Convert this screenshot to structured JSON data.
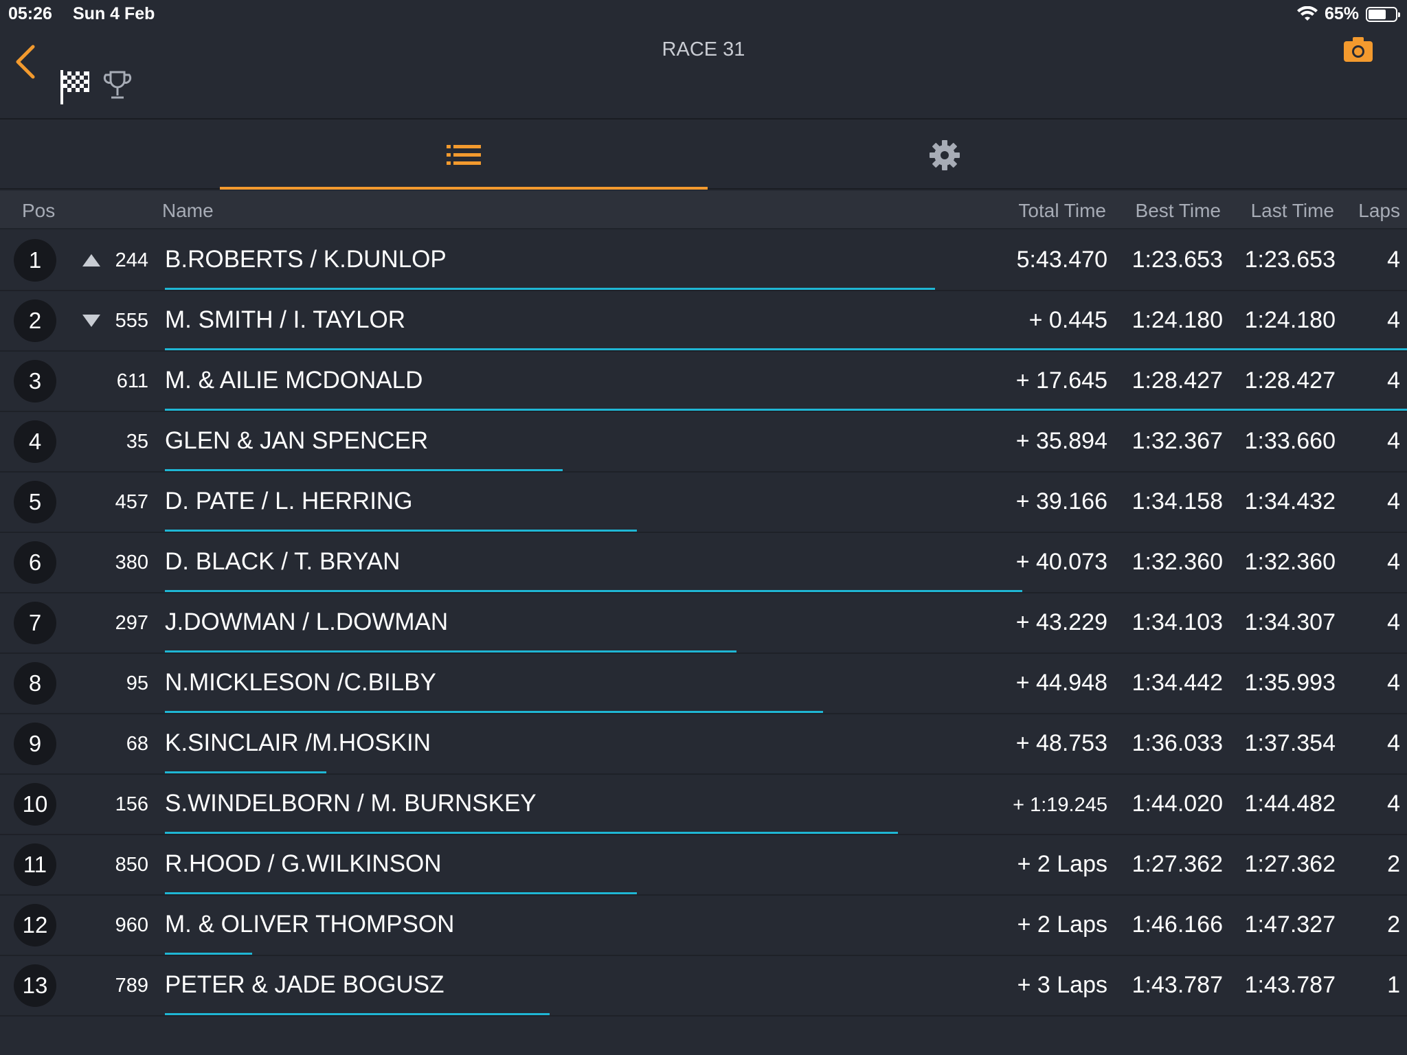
{
  "status_bar": {
    "time": "05:26",
    "date": "Sun 4 Feb",
    "battery": "65%",
    "battery_level": 0.65
  },
  "header": {
    "title": "RACE 31"
  },
  "icons": {
    "back": "chevron-left-icon",
    "flag": "checkered-flag-icon",
    "trophy": "trophy-icon",
    "camera": "camera-icon",
    "list": "list-icon",
    "settings": "gear-icon"
  },
  "colors": {
    "accent": "#f39a2e",
    "progress": "#1fb6d4",
    "background": "#262a33"
  },
  "columns": {
    "pos": "Pos",
    "name": "Name",
    "total": "Total Time",
    "best": "Best Time",
    "last": "Last Time",
    "laps": "Laps"
  },
  "results": [
    {
      "pos": "1",
      "trend": "up",
      "kart": "244",
      "name": "B.ROBERTS / K.DUNLOP",
      "total": "5:43.470",
      "best": "1:23.653",
      "last": "1:23.653",
      "laps": "4",
      "progress": 0.62
    },
    {
      "pos": "2",
      "trend": "down",
      "kart": "555",
      "name": "M. SMITH / I. TAYLOR",
      "total": "+ 0.445",
      "best": "1:24.180",
      "last": "1:24.180",
      "laps": "4",
      "progress": 1.0
    },
    {
      "pos": "3",
      "trend": "",
      "kart": "611",
      "name": "M. & AILIE MCDONALD",
      "total": "+ 17.645",
      "best": "1:28.427",
      "last": "1:28.427",
      "laps": "4",
      "progress": 1.0
    },
    {
      "pos": "4",
      "trend": "",
      "kart": "35",
      "name": "GLEN & JAN SPENCER",
      "total": "+ 35.894",
      "best": "1:32.367",
      "last": "1:33.660",
      "laps": "4",
      "progress": 0.32
    },
    {
      "pos": "5",
      "trend": "",
      "kart": "457",
      "name": "D. PATE / L. HERRING",
      "total": "+ 39.166",
      "best": "1:34.158",
      "last": "1:34.432",
      "laps": "4",
      "progress": 0.38
    },
    {
      "pos": "6",
      "trend": "",
      "kart": "380",
      "name": "D. BLACK / T. BRYAN",
      "total": "+ 40.073",
      "best": "1:32.360",
      "last": "1:32.360",
      "laps": "4",
      "progress": 0.69
    },
    {
      "pos": "7",
      "trend": "",
      "kart": "297",
      "name": "J.DOWMAN / L.DOWMAN",
      "total": "+ 43.229",
      "best": "1:34.103",
      "last": "1:34.307",
      "laps": "4",
      "progress": 0.46
    },
    {
      "pos": "8",
      "trend": "",
      "kart": "95",
      "name": "N.MICKLESON /C.BILBY",
      "total": "+ 44.948",
      "best": "1:34.442",
      "last": "1:35.993",
      "laps": "4",
      "progress": 0.53
    },
    {
      "pos": "9",
      "trend": "",
      "kart": "68",
      "name": "K.SINCLAIR /M.HOSKIN",
      "total": "+ 48.753",
      "best": "1:36.033",
      "last": "1:37.354",
      "laps": "4",
      "progress": 0.13
    },
    {
      "pos": "10",
      "trend": "",
      "kart": "156",
      "name": "S.WINDELBORN / M. BURNSKEY",
      "total": "+ 1:19.245",
      "best": "1:44.020",
      "last": "1:44.482",
      "laps": "4",
      "progress": 0.59
    },
    {
      "pos": "11",
      "trend": "",
      "kart": "850",
      "name": "R.HOOD / G.WILKINSON",
      "total": "+ 2 Laps",
      "best": "1:27.362",
      "last": "1:27.362",
      "laps": "2",
      "progress": 0.38
    },
    {
      "pos": "12",
      "trend": "",
      "kart": "960",
      "name": "M. & OLIVER THOMPSON",
      "total": "+ 2 Laps",
      "best": "1:46.166",
      "last": "1:47.327",
      "laps": "2",
      "progress": 0.07
    },
    {
      "pos": "13",
      "trend": "",
      "kart": "789",
      "name": "PETER & JADE BOGUSZ",
      "total": "+ 3 Laps",
      "best": "1:43.787",
      "last": "1:43.787",
      "laps": "1",
      "progress": 0.31
    }
  ]
}
